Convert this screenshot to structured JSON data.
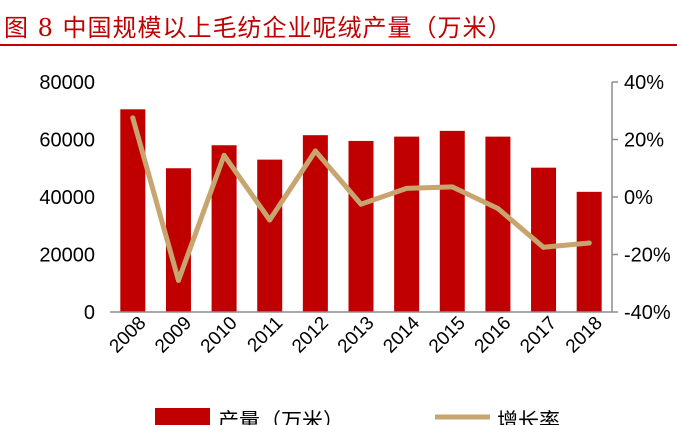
{
  "title": "图 8 中国规模以上毛纺企业呢绒产量（万米）",
  "chart_data": {
    "type": "bar",
    "categories": [
      "2008",
      "2009",
      "2010",
      "2011",
      "2012",
      "2013",
      "2014",
      "2015",
      "2016",
      "2017",
      "2018"
    ],
    "series": [
      {
        "name": "产量（万米）",
        "type": "bar",
        "axis": "left",
        "color": "#c00000",
        "values": [
          70500,
          50000,
          58000,
          53000,
          61500,
          59500,
          61000,
          63000,
          61000,
          50200,
          41800
        ]
      },
      {
        "name": "增长率",
        "type": "line",
        "axis": "right",
        "color": "#c8a46e",
        "unit": "%",
        "values": [
          27.5,
          -29,
          14.5,
          -8,
          16,
          -2.5,
          3,
          3.5,
          -4,
          -17.5,
          -16
        ]
      }
    ],
    "y_left": {
      "ylim": [
        0,
        80000
      ],
      "ticks": [
        "0",
        "20000",
        "40000",
        "60000",
        "80000"
      ]
    },
    "y_right": {
      "ylim": [
        -40,
        40
      ],
      "ticks": [
        "-40%",
        "-20%",
        "0%",
        "20%",
        "40%"
      ]
    },
    "grid": false,
    "legend": "bottom"
  }
}
